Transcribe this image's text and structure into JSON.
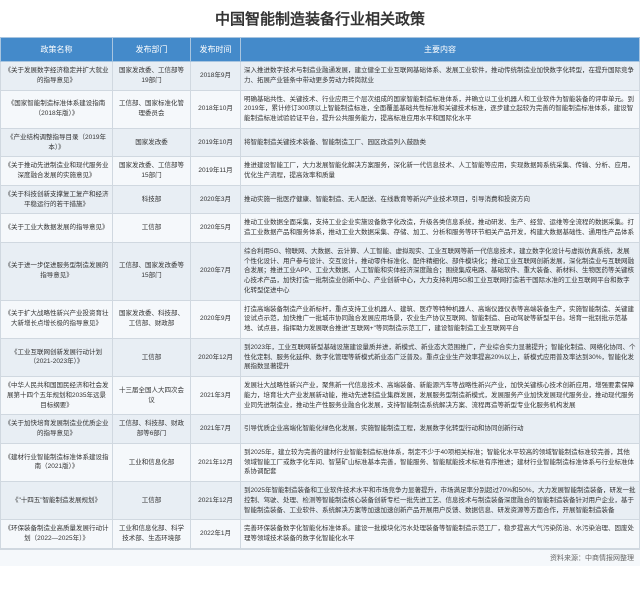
{
  "title": "中国智能制造装备行业相关政策",
  "columns": [
    "政策名称",
    "发布部门",
    "发布时间",
    "主要内容"
  ],
  "col_widths": [
    "112px",
    "78px",
    "50px",
    "auto"
  ],
  "header_bg": "#448aca",
  "row_odd_bg": "#e8eef4",
  "row_even_bg": "#f5f8fb",
  "border_color": "#d0d8e0",
  "rows": [
    {
      "name": "《关于发展数字经济稳定并扩大就业的指导意见》",
      "dept": "国家发改委、工信部等19部门",
      "date": "2018年9月",
      "content": "深入推进数字技术与制造业融通发展，建立健全工业互联网基础体系、发展工业软件，推动传统制造业加快数字化转型，在提升国际竞争力、拓展产业链条中带动更多劳动力转岗就业"
    },
    {
      "name": "《国家智能制造标准体系建设指南（2018年版）》",
      "dept": "工信部、国家标准化管理委员会",
      "date": "2018年10月",
      "content": "明确基础共性、关键技术、行业应用三个层次组成的国家智能制造标准体系，并确立以工业机器人和工业软件为智能装备的评审单元。到2019年，累计修订300项以上智能制造标准，全面覆盖基础共性标准和关键技术标准，逐步建立起较为完善的智能制造标准体系，建设智能制造标准试验验证平台，提升公共服务能力，提高标准应用水平和国际化水平"
    },
    {
      "name": "《产业结构调整指导目录（2019年本）》",
      "dept": "国家发改委",
      "date": "2019年10月",
      "content": "将智能制造关键技术装备、智能制造工厂、园区改造列入鼓励类"
    },
    {
      "name": "《关于推动先进制造业和现代服务业深度融合发展的实施意见》",
      "dept": "国家发改委、工信部等15部门",
      "date": "2019年11月",
      "content": "推进建设智能工厂，大力发展智能化解决方案服务，深化新一代信息技术、人工智能等应用，实现数据跨系统采集、传输、分析、应用，优化生产流程，提高效率和质量"
    },
    {
      "name": "《关于科技创新支撑复工复产和经济平稳运行的若干措施》",
      "dept": "科技部",
      "date": "2020年3月",
      "content": "推动实施一批医疗健康、智能制造、无人配送、在线教育等新兴产业技术项目，引导消费和投资方向"
    },
    {
      "name": "《关于工业大数据发展的指导意见》",
      "dept": "工信部",
      "date": "2020年5月",
      "content": "推动工业数据全面采集，支持工业企业实施设备数字化改造，升级各类信息系统，推动研发、生产、经营、运维等全流程的数据采集。打造工业数据产品和服务体系，推动工业大数据采集、存储、加工、分析和服务等环节相关产品开发，构建大数据基础性、通用性产品体系"
    },
    {
      "name": "《关于进一步促进服务型制造发展的指导意见》",
      "dept": "工信部、国家发改委等15部门",
      "date": "2020年7月",
      "content": "综合利用5G、物联网、大数据、云计算、人工智能、虚拟现实、工业互联网等新一代信息技术，建立数字化设计与虚拟仿真系统，发展个性化设计、用户参与设计、交互设计，推动零件标准化、配件精细化、部件模块化；推动工业互联网创新发展，深化制造业与互联网融合发展；推进工业APP、工业大数据、人工智能和实体经济深度融合；围绕集成电路、基础软件、重大装备、新材料、生物医药等关键核心技术产品，加快打造一批制造业创新中心、产业创新中心，大力支持利用5G和工业互联网打造若干国际水准的工业互联网平台和数字化转型促进中心"
    },
    {
      "name": "《关于扩大战略性新兴产业投资育壮大新增长点增长极的指导意见》",
      "dept": "国家发改委、科技部、工信部、财政部",
      "date": "2020年9月",
      "content": "打造高端装备制造产业新标杆，重点支持工业机器人、建筑、医疗等特种机器人、高端仪器仪表等高端装备生产，实施智能制造、关键建设试点示范，加快推广一批城市协同融合发展应用场景，农业生产协议互联网、智能制造、自动驾驶等新型平台。培育一批别批示范基地、试点县，指挥助力发展联合推进\"互联网+\"等同制造示范工厂，建设智能制造工业互联网平台"
    },
    {
      "name": "《工业互联网创新发展行动计划（2021-2023年）》",
      "dept": "工信部",
      "date": "2020年12月",
      "content": "到2023年，工业互联网新型基础设施建设量质并进，新模式、新业态大范围推广，产业综合实力显著提升；智能化制造、网络化协同、个性化定制、服务化延伸、数字化管理等新模式新业态广泛普及。重点企业生产效率提高20%以上，新模式应用普及率达到30%，智能化发展指数显著提升"
    },
    {
      "name": "《中华人民共和国国民经济和社会发展第十四个五年规划和2035年远景目标纲要》",
      "dept": "十三届全国人大四次会议",
      "date": "2021年3月",
      "content": "发展壮大战略性新兴产业，聚焦新一代信息技术、高端装备、新能源汽车等战略性新兴产业，加快关键核心技术创新应用，增强要素保障能力，培育壮大产业发展新动能，推动先进制造业集群发展，发展服务型制造新模式，发展服务产业加快发展现代服务业，推动现代服务业同先进制造业，推动生产性服务业融合化发展，支持智能制造系统解决方案、流程再造等新型专业化服务机构发展"
    },
    {
      "name": "《关于加快培育发展制造业优质企业的指导意见》",
      "dept": "工信部、科技部、财政部等6部门",
      "date": "2021年7月",
      "content": "引导优质企业高端化智能化绿色化发展，实施智能制造工程，发展数字化转型行动和协同创新行动"
    },
    {
      "name": "《建材行业智能制造标准体系建设指南（2021版）》",
      "dept": "工业和信息化部",
      "date": "2021年12月",
      "content": "到2025年，建立较为完善的建材行业智能制造标准体系，制定不少于40项相关标准；智能化水平较高的领域智能制造标准较完善，其他领域智能工厂或数字化车间、智慧矿山标准基本完善，智能服务、智能赋能技术标准有序推进；建材行业智能制造标准体系与行业标准体系协调配套"
    },
    {
      "name": "《\"十四五\"智能制造发展规划》",
      "dept": "工信部",
      "date": "2021年12月",
      "content": "到2025年智能制造装备和工业软件技术水平和市场竞争力显著提升，市场满足率分别超过70%和50%，大力发展智能制造装备，研发一批控制、驾驶、处理、检测等智能制造核心装备创新专栏一批先进工艺、信息技术与制造装备深度融合的智能制造装备针对用户企业，基于智能制造装备、工业软件、系统解决方案等加速加速创新产品开展用户反馈、数据信息、研发资源等方面合作，开展智能制造装备"
    },
    {
      "name": "《环保装备制造业高质量发展行动计划（2022—2025年）》",
      "dept": "工业和信息化部、科学技术部、生态环境部",
      "date": "2022年1月",
      "content": "完善环保装备数字化智能化标准体系。建设一批模块化污水处理装备等智能制造示范工厂，稳步提高大气污染防治、水污染治理、固废处理等领域技术装备的数字化智能化水平"
    }
  ],
  "source": "资料来源：中商情报网整理"
}
